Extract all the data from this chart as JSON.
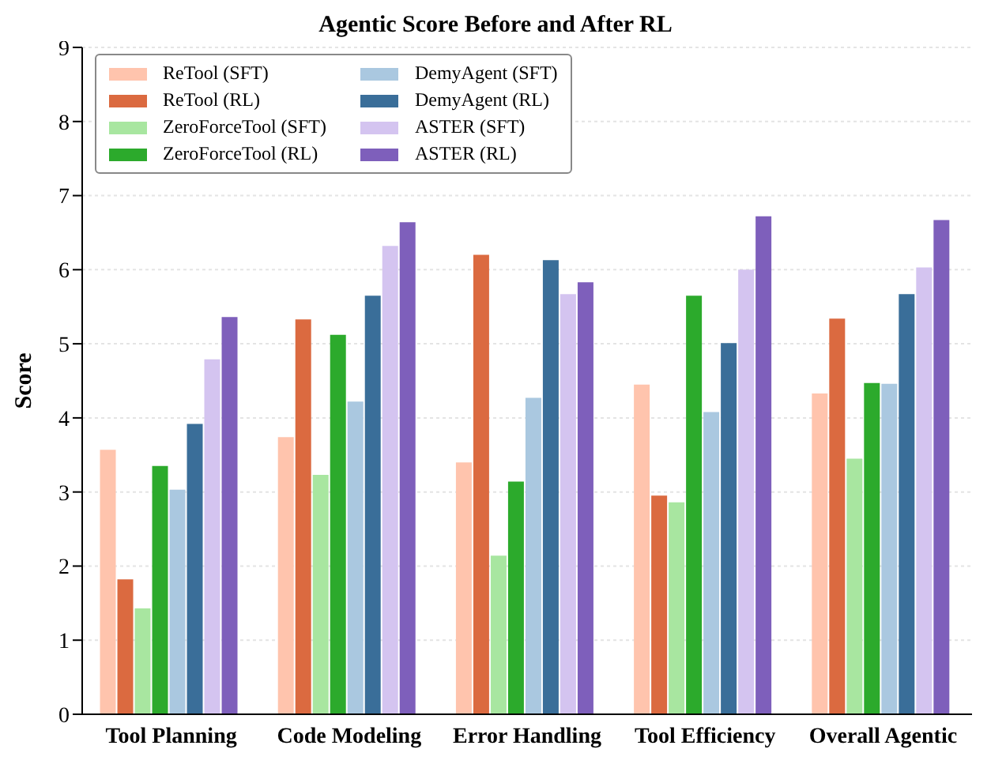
{
  "chart_data": {
    "type": "bar",
    "title": "Agentic Score Before and After RL",
    "ylabel": "Score",
    "categories": [
      "Tool Planning",
      "Code Modeling",
      "Error Handling",
      "Tool Efficiency",
      "Overall Agentic"
    ],
    "series": [
      {
        "name": "ReTool (SFT)",
        "color": "#ffc4ad",
        "values": [
          3.57,
          3.74,
          3.4,
          4.45,
          4.33
        ]
      },
      {
        "name": "ReTool (RL)",
        "color": "#db6a40",
        "values": [
          1.82,
          5.33,
          6.2,
          2.95,
          5.34
        ]
      },
      {
        "name": "ZeroForceTool (SFT)",
        "color": "#a8e6a0",
        "values": [
          1.43,
          3.23,
          2.14,
          2.86,
          3.45
        ]
      },
      {
        "name": "ZeroForceTool (RL)",
        "color": "#2caa2c",
        "values": [
          3.35,
          5.12,
          3.14,
          5.65,
          4.47
        ]
      },
      {
        "name": "DemyAgent (SFT)",
        "color": "#aac8e0",
        "values": [
          3.03,
          4.22,
          4.27,
          4.08,
          4.46
        ]
      },
      {
        "name": "DemyAgent (RL)",
        "color": "#3a6e99",
        "values": [
          3.92,
          5.65,
          6.13,
          5.01,
          5.67
        ]
      },
      {
        "name": "ASTER (SFT)",
        "color": "#d4c4f0",
        "values": [
          4.79,
          6.32,
          5.67,
          6.0,
          6.03
        ]
      },
      {
        "name": "ASTER (RL)",
        "color": "#7e5fbb",
        "values": [
          5.36,
          6.64,
          5.83,
          6.72,
          6.67
        ]
      }
    ],
    "ylim": [
      0,
      9
    ],
    "yticks": [
      0,
      1,
      2,
      3,
      4,
      5,
      6,
      7,
      8,
      9
    ],
    "grid": "y",
    "legend": "top left"
  }
}
